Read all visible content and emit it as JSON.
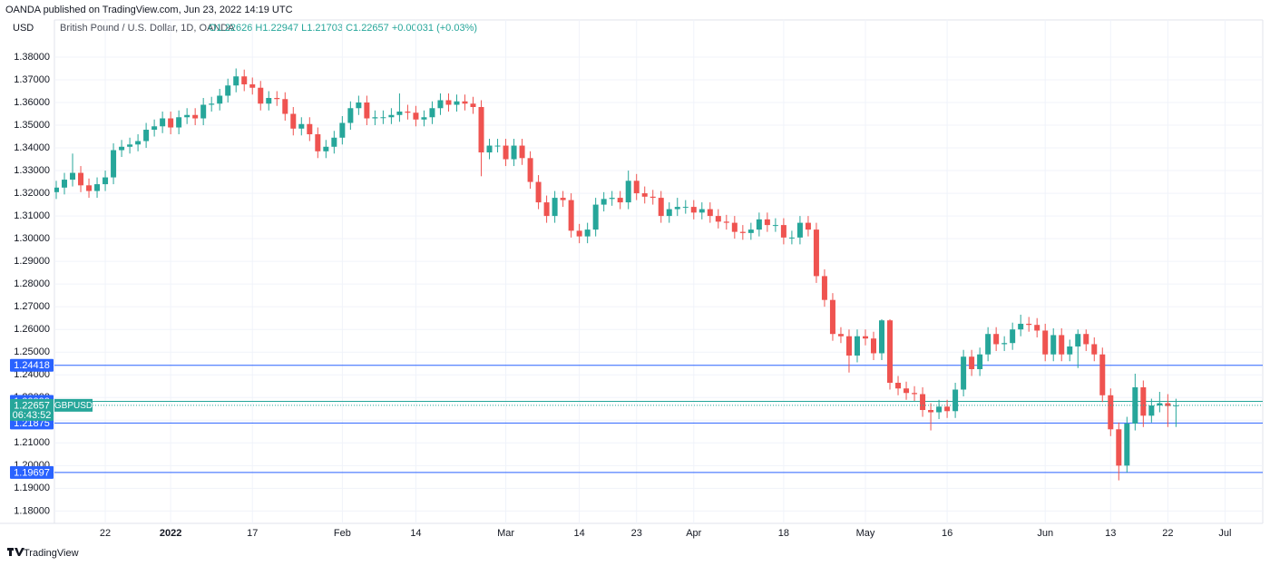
{
  "header": {
    "published": "OANDA published on TradingView.com, Jun 23, 2022 14:19 UTC",
    "footer": "TradingView"
  },
  "chart_data": {
    "type": "candlestick",
    "currency": "USD",
    "title": "British Pound / U.S. Dollar, 1D, OANDA",
    "ohlc_text": "O1.22626 H1.22947 L1.21703 C1.22657 +0.00031 (+0.03%)",
    "up_color": "#26a69a",
    "down_color": "#ef5350",
    "grid": true,
    "ylim": [
      1.17455,
      1.39637
    ],
    "yticks": [
      {
        "value": 1.18,
        "label": "1.18000"
      },
      {
        "value": 1.19,
        "label": "1.19000"
      },
      {
        "value": 1.2,
        "label": "1.20000"
      },
      {
        "value": 1.21,
        "label": "1.21000"
      },
      {
        "value": 1.22,
        "label": "1.22000"
      },
      {
        "value": 1.23,
        "label": "1.23000"
      },
      {
        "value": 1.24,
        "label": "1.24000"
      },
      {
        "value": 1.25,
        "label": "1.25000"
      },
      {
        "value": 1.26,
        "label": "1.26000"
      },
      {
        "value": 1.27,
        "label": "1.27000"
      },
      {
        "value": 1.28,
        "label": "1.28000"
      },
      {
        "value": 1.29,
        "label": "1.29000"
      },
      {
        "value": 1.3,
        "label": "1.30000"
      },
      {
        "value": 1.31,
        "label": "1.31000"
      },
      {
        "value": 1.32,
        "label": "1.32000"
      },
      {
        "value": 1.33,
        "label": "1.33000"
      },
      {
        "value": 1.34,
        "label": "1.34000"
      },
      {
        "value": 1.35,
        "label": "1.35000"
      },
      {
        "value": 1.36,
        "label": "1.36000"
      },
      {
        "value": 1.37,
        "label": "1.37000"
      },
      {
        "value": 1.38,
        "label": "1.38000"
      }
    ],
    "hlines": [
      {
        "value": 1.24418,
        "color": "#2962ff"
      },
      {
        "value": 1.22833,
        "color": "#26a69a"
      },
      {
        "value": 1.21875,
        "color": "#2962ff"
      },
      {
        "value": 1.19697,
        "color": "#2962ff"
      }
    ],
    "last_price": 1.22657,
    "symbol": "GBPUSD",
    "countdown": "06:43:52",
    "categories": [
      null,
      null,
      null,
      null,
      null,
      null,
      "22",
      null,
      null,
      null,
      null,
      null,
      null,
      null,
      "2022",
      null,
      null,
      null,
      null,
      null,
      null,
      null,
      null,
      null,
      "17",
      null,
      null,
      null,
      null,
      null,
      null,
      null,
      null,
      null,
      null,
      "Feb",
      null,
      null,
      null,
      null,
      null,
      null,
      null,
      null,
      "14",
      null,
      null,
      null,
      null,
      null,
      null,
      null,
      null,
      null,
      null,
      "Mar",
      null,
      null,
      null,
      null,
      null,
      null,
      null,
      null,
      "14",
      null,
      null,
      null,
      null,
      null,
      null,
      "23",
      null,
      null,
      null,
      null,
      null,
      null,
      "Apr",
      null,
      null,
      null,
      null,
      null,
      null,
      null,
      null,
      null,
      null,
      "18",
      null,
      null,
      null,
      null,
      null,
      null,
      null,
      null,
      null,
      "May",
      null,
      null,
      null,
      null,
      null,
      null,
      null,
      null,
      null,
      "16",
      null,
      null,
      null,
      null,
      null,
      null,
      null,
      null,
      null,
      null,
      null,
      "Jun",
      null,
      null,
      null,
      null,
      null,
      null,
      null,
      "13",
      null,
      null,
      null,
      null,
      null,
      null,
      "22",
      null,
      null,
      null,
      null,
      null,
      null,
      "Jul"
    ],
    "open": [
      1.3205,
      1.3225,
      1.326,
      1.329,
      1.3235,
      1.321,
      1.324,
      1.327,
      1.339,
      1.3405,
      1.3415,
      1.343,
      1.348,
      1.3495,
      1.353,
      1.349,
      1.3535,
      1.3545,
      1.353,
      1.359,
      1.3595,
      1.363,
      1.3675,
      1.3715,
      1.368,
      1.3665,
      1.3595,
      1.362,
      1.3615,
      1.355,
      1.3485,
      1.3505,
      1.346,
      1.3385,
      1.3405,
      1.3445,
      1.351,
      1.3575,
      1.36,
      1.353,
      1.3535,
      1.3535,
      1.3545,
      1.356,
      1.3555,
      1.3525,
      1.3535,
      1.3575,
      1.361,
      1.359,
      1.3605,
      1.3595,
      1.358,
      1.338,
      1.341,
      1.341,
      1.335,
      1.341,
      1.3355,
      1.325,
      1.316,
      1.31,
      1.318,
      1.317,
      1.3035,
      1.301,
      1.304,
      1.315,
      1.3175,
      1.318,
      1.316,
      1.3255,
      1.32,
      1.3185,
      1.318,
      1.31,
      1.313,
      1.314,
      1.314,
      1.3115,
      1.313,
      1.31,
      1.3075,
      1.307,
      1.303,
      1.3025,
      1.304,
      1.3085,
      1.306,
      1.306,
      1.3005,
      1.3005,
      1.307,
      1.304,
      1.2835,
      1.273,
      1.258,
      1.257,
      1.2485,
      1.257,
      1.256,
      1.2495,
      1.264,
      1.2365,
      1.234,
      1.232,
      1.2315,
      1.2245,
      1.2235,
      1.226,
      1.224,
      1.2335,
      1.248,
      1.2425,
      1.249,
      1.258,
      1.2535,
      1.254,
      1.26,
      1.2625,
      1.262,
      1.2595,
      1.249,
      1.2575,
      1.249,
      1.2525,
      1.258,
      1.2535,
      1.249,
      1.231,
      1.216,
      1.2,
      1.2185,
      1.2345,
      1.222,
      1.2265,
      1.2275,
      1.22626,
      null,
      null,
      null,
      null,
      null,
      null
    ],
    "high": [
      1.3255,
      1.329,
      1.3375,
      1.332,
      1.3265,
      1.327,
      1.33,
      1.342,
      1.3435,
      1.3445,
      1.346,
      1.351,
      1.3525,
      1.356,
      1.356,
      1.3565,
      1.3575,
      1.3575,
      1.362,
      1.3625,
      1.366,
      1.3705,
      1.375,
      1.3745,
      1.371,
      1.3695,
      1.365,
      1.365,
      1.3645,
      1.358,
      1.3535,
      1.3535,
      1.349,
      1.3435,
      1.3475,
      1.354,
      1.3605,
      1.363,
      1.363,
      1.3565,
      1.3565,
      1.3575,
      1.364,
      1.359,
      1.3585,
      1.3565,
      1.3605,
      1.364,
      1.364,
      1.3635,
      1.3635,
      1.3625,
      1.361,
      1.344,
      1.344,
      1.344,
      1.344,
      1.344,
      1.3385,
      1.328,
      1.319,
      1.321,
      1.321,
      1.32,
      1.3065,
      1.307,
      1.318,
      1.3205,
      1.321,
      1.321,
      1.33,
      1.3285,
      1.323,
      1.3215,
      1.321,
      1.316,
      1.318,
      1.317,
      1.317,
      1.316,
      1.316,
      1.313,
      1.3105,
      1.31,
      1.306,
      1.307,
      1.3115,
      1.3115,
      1.309,
      1.309,
      1.3035,
      1.31,
      1.31,
      1.307,
      1.2865,
      1.276,
      1.261,
      1.26,
      1.26,
      1.26,
      1.259,
      1.2645,
      1.2645,
      1.2395,
      1.237,
      1.235,
      1.2345,
      1.2275,
      1.229,
      1.229,
      1.2365,
      1.251,
      1.251,
      1.252,
      1.261,
      1.261,
      1.257,
      1.263,
      1.2665,
      1.2655,
      1.265,
      1.2625,
      1.2605,
      1.2605,
      1.2555,
      1.26,
      1.26,
      1.2565,
      1.252,
      1.234,
      1.219,
      1.2215,
      1.2405,
      1.2375,
      1.2295,
      1.2325,
      1.2315,
      1.22947,
      null,
      null,
      null,
      null,
      null,
      null
    ],
    "low": [
      1.3175,
      1.3195,
      1.323,
      1.3205,
      1.318,
      1.318,
      1.321,
      1.324,
      1.336,
      1.3375,
      1.3385,
      1.34,
      1.345,
      1.3465,
      1.346,
      1.346,
      1.3505,
      1.35,
      1.35,
      1.356,
      1.3565,
      1.36,
      1.3645,
      1.365,
      1.3635,
      1.3565,
      1.3565,
      1.3585,
      1.352,
      1.3455,
      1.3455,
      1.343,
      1.3355,
      1.3355,
      1.3375,
      1.3415,
      1.348,
      1.3545,
      1.35,
      1.35,
      1.3505,
      1.3505,
      1.3515,
      1.3525,
      1.3495,
      1.3495,
      1.3505,
      1.3545,
      1.356,
      1.356,
      1.3565,
      1.355,
      1.3275,
      1.335,
      1.338,
      1.332,
      1.332,
      1.3325,
      1.322,
      1.313,
      1.307,
      1.307,
      1.314,
      1.3005,
      1.298,
      1.298,
      1.301,
      1.312,
      1.3145,
      1.313,
      1.313,
      1.317,
      1.3155,
      1.315,
      1.307,
      1.307,
      1.31,
      1.311,
      1.3085,
      1.3085,
      1.307,
      1.3045,
      1.304,
      1.3,
      1.2995,
      1.2995,
      1.301,
      1.303,
      1.303,
      1.2975,
      1.2975,
      1.2975,
      1.301,
      1.2805,
      1.27,
      1.255,
      1.254,
      1.241,
      1.2455,
      1.253,
      1.2465,
      1.2465,
      1.2335,
      1.231,
      1.229,
      1.2285,
      1.2215,
      1.2155,
      1.2205,
      1.221,
      1.221,
      1.2305,
      1.2395,
      1.2395,
      1.246,
      1.2505,
      1.2505,
      1.251,
      1.257,
      1.259,
      1.2565,
      1.246,
      1.246,
      1.246,
      1.246,
      1.243,
      1.2505,
      1.246,
      1.228,
      1.213,
      1.1935,
      1.197,
      1.2155,
      1.217,
      1.219,
      1.2235,
      1.217,
      1.21703,
      null,
      null,
      null,
      null,
      null,
      null
    ],
    "close": [
      1.3225,
      1.326,
      1.329,
      1.3235,
      1.321,
      1.324,
      1.327,
      1.339,
      1.3405,
      1.3415,
      1.343,
      1.348,
      1.3495,
      1.353,
      1.349,
      1.3535,
      1.3545,
      1.353,
      1.359,
      1.3595,
      1.363,
      1.3675,
      1.3715,
      1.368,
      1.3665,
      1.3595,
      1.362,
      1.3615,
      1.355,
      1.3485,
      1.3505,
      1.346,
      1.3385,
      1.3405,
      1.3445,
      1.351,
      1.3575,
      1.36,
      1.353,
      1.3535,
      1.3535,
      1.3545,
      1.356,
      1.3555,
      1.3525,
      1.3535,
      1.3575,
      1.361,
      1.359,
      1.3605,
      1.3595,
      1.358,
      1.338,
      1.341,
      1.341,
      1.335,
      1.341,
      1.3355,
      1.325,
      1.316,
      1.31,
      1.318,
      1.317,
      1.3035,
      1.301,
      1.304,
      1.315,
      1.3175,
      1.318,
      1.316,
      1.3255,
      1.32,
      1.3185,
      1.318,
      1.31,
      1.313,
      1.314,
      1.314,
      1.3115,
      1.313,
      1.31,
      1.3075,
      1.307,
      1.303,
      1.3025,
      1.304,
      1.3085,
      1.306,
      1.306,
      1.3005,
      1.3005,
      1.307,
      1.304,
      1.2835,
      1.273,
      1.258,
      1.257,
      1.2485,
      1.257,
      1.256,
      1.2495,
      1.264,
      1.2365,
      1.234,
      1.232,
      1.2315,
      1.2245,
      1.2235,
      1.226,
      1.224,
      1.2335,
      1.248,
      1.2425,
      1.249,
      1.258,
      1.2535,
      1.254,
      1.26,
      1.2625,
      1.262,
      1.2595,
      1.249,
      1.2575,
      1.249,
      1.2525,
      1.258,
      1.2535,
      1.249,
      1.231,
      1.216,
      1.2,
      1.2185,
      1.2345,
      1.222,
      1.2265,
      1.2275,
      1.22626,
      1.22657,
      null,
      null,
      null,
      null,
      null,
      null
    ]
  }
}
